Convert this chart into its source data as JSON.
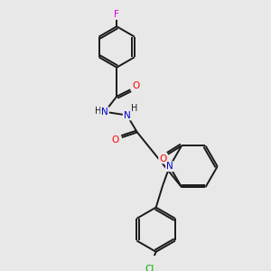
{
  "background_color": "#e8e8e8",
  "bond_color": "#1a1a1a",
  "atom_colors": {
    "F": "#dd00dd",
    "O": "#ff0000",
    "N": "#0000cc",
    "Cl": "#00aa00",
    "C": "#1a1a1a"
  },
  "figsize": [
    3.0,
    3.0
  ],
  "dpi": 100,
  "lw": 1.4,
  "fontsize": 7.5
}
